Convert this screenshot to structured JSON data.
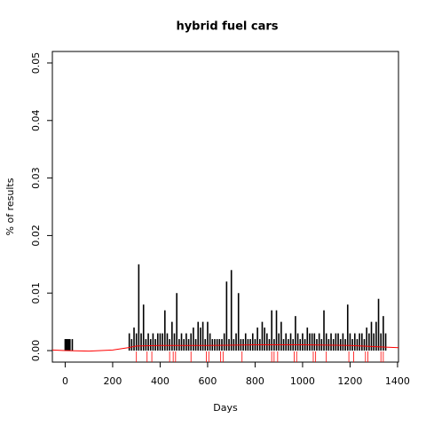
{
  "chart_data": {
    "type": "spike",
    "title": "hybrid fuel cars",
    "xlabel": "Days",
    "ylabel": "% of results",
    "color": "#000000",
    "x": [
      0,
      5,
      10,
      15,
      20,
      30,
      270,
      280,
      290,
      300,
      310,
      320,
      330,
      340,
      350,
      360,
      370,
      380,
      390,
      400,
      410,
      420,
      430,
      440,
      450,
      460,
      470,
      480,
      490,
      500,
      510,
      520,
      530,
      540,
      550,
      560,
      570,
      580,
      590,
      600,
      610,
      620,
      630,
      640,
      650,
      660,
      670,
      680,
      690,
      700,
      710,
      720,
      730,
      740,
      750,
      760,
      770,
      780,
      790,
      800,
      810,
      820,
      830,
      840,
      850,
      860,
      870,
      880,
      890,
      900,
      910,
      920,
      930,
      940,
      950,
      960,
      970,
      980,
      990,
      1000,
      1010,
      1020,
      1030,
      1040,
      1050,
      1060,
      1070,
      1080,
      1090,
      1100,
      1110,
      1120,
      1130,
      1140,
      1150,
      1160,
      1170,
      1180,
      1190,
      1200,
      1210,
      1220,
      1230,
      1240,
      1250,
      1260,
      1270,
      1280,
      1290,
      1300,
      1310,
      1320,
      1330,
      1340,
      1350
    ],
    "values": [
      0.002,
      0.002,
      0.002,
      0.002,
      0.002,
      0.002,
      0.003,
      0.002,
      0.004,
      0.003,
      0.015,
      0.003,
      0.008,
      0.002,
      0.003,
      0.002,
      0.003,
      0.002,
      0.003,
      0.003,
      0.003,
      0.007,
      0.003,
      0.002,
      0.005,
      0.003,
      0.01,
      0.002,
      0.003,
      0.002,
      0.003,
      0.002,
      0.003,
      0.004,
      0.002,
      0.005,
      0.004,
      0.005,
      0.002,
      0.005,
      0.003,
      0.002,
      0.002,
      0.002,
      0.002,
      0.002,
      0.003,
      0.012,
      0.002,
      0.014,
      0.002,
      0.003,
      0.01,
      0.002,
      0.002,
      0.003,
      0.002,
      0.002,
      0.003,
      0.002,
      0.004,
      0.002,
      0.005,
      0.004,
      0.003,
      0.002,
      0.007,
      0.002,
      0.007,
      0.003,
      0.005,
      0.002,
      0.003,
      0.002,
      0.003,
      0.002,
      0.006,
      0.003,
      0.002,
      0.003,
      0.002,
      0.004,
      0.003,
      0.003,
      0.003,
      0.002,
      0.003,
      0.002,
      0.007,
      0.003,
      0.002,
      0.003,
      0.002,
      0.003,
      0.003,
      0.002,
      0.003,
      0.002,
      0.008,
      0.003,
      0.002,
      0.003,
      0.002,
      0.003,
      0.003,
      0.002,
      0.004,
      0.003,
      0.005,
      0.003,
      0.005,
      0.009,
      0.003,
      0.006,
      0.003
    ],
    "smooth": {
      "color": "#ff0000",
      "x": [
        -54,
        0,
        100,
        200,
        265,
        300,
        400,
        600,
        800,
        1000,
        1200,
        1350,
        1404
      ],
      "values": [
        0.0001,
        0,
        -0.0001,
        0.0001,
        0.0005,
        0.0008,
        0.0009,
        0.0009,
        0.001,
        0.001,
        0.0009,
        0.0006,
        0.0005
      ]
    },
    "rug": {
      "color": "#ff0000",
      "x": [
        300,
        345,
        365,
        440,
        455,
        465,
        530,
        595,
        605,
        655,
        665,
        745,
        870,
        880,
        895,
        965,
        975,
        1045,
        1055,
        1100,
        1195,
        1215,
        1265,
        1275,
        1330,
        1340
      ]
    },
    "xlim": [
      -54,
      1404
    ],
    "xticks": [
      0,
      200,
      400,
      600,
      800,
      1000,
      1200,
      1400
    ],
    "ylim": [
      -0.002,
      0.052
    ],
    "yticks": [
      {
        "value": 0,
        "label": "0.00"
      },
      {
        "value": 0.01,
        "label": "0.01"
      },
      {
        "value": 0.02,
        "label": "0.02"
      },
      {
        "value": 0.03,
        "label": "0.03"
      },
      {
        "value": 0.04,
        "label": "0.04"
      },
      {
        "value": 0.05,
        "label": "0.05"
      }
    ]
  }
}
